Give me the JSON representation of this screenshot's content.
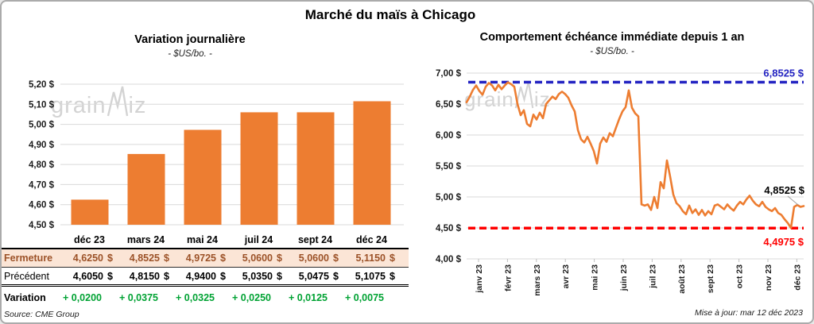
{
  "title": "Marché du maïs à Chicago",
  "watermark": {
    "part1": "grain",
    "part2": "iz"
  },
  "colors": {
    "accent_orange": "#ED7D31",
    "ref_blue": "#2424C2",
    "ref_red": "#FF0000",
    "gain_green": "#00A233",
    "close_brown": "#9C5228",
    "close_bg": "#FBE5D6",
    "grid": "#D9D9D9",
    "watermark": "#C9C9C9"
  },
  "chart_data": [
    {
      "type": "bar",
      "title": "Variation journalière",
      "subtitle": "- $US/bo. -",
      "categories": [
        "déc 23",
        "mars 24",
        "mai 24",
        "juil 24",
        "sept 24",
        "déc 24"
      ],
      "values": [
        4.625,
        4.8525,
        4.9725,
        5.06,
        5.06,
        5.115
      ],
      "ylim": [
        4.5,
        5.2
      ],
      "grid": true,
      "bar_color": "#ED7D31",
      "yticks": [
        {
          "v": 5.2,
          "label": "5,20 $"
        },
        {
          "v": 5.1,
          "label": "5,10 $"
        },
        {
          "v": 5.0,
          "label": "5,00 $"
        },
        {
          "v": 4.9,
          "label": "4,90 $"
        },
        {
          "v": 4.8,
          "label": "4,80 $"
        },
        {
          "v": 4.7,
          "label": "4,70 $"
        },
        {
          "v": 4.6,
          "label": "4,60 $"
        },
        {
          "v": 4.5,
          "label": "4,50 $"
        }
      ]
    },
    {
      "type": "line",
      "title": "Comportement échéance immédiate depuis 1 an",
      "subtitle": "- $US/bo. -",
      "x_labels": [
        "janv 23",
        "févr 23",
        "mars 23",
        "avr 23",
        "mai 23",
        "juin 23",
        "juil 23",
        "août 23",
        "sept 23",
        "oct 23",
        "nov 23",
        "déc 23"
      ],
      "ylim": [
        4.0,
        7.0
      ],
      "grid": true,
      "yticks": [
        {
          "v": 7.0,
          "label": "7,00 $"
        },
        {
          "v": 6.5,
          "label": "6,50 $"
        },
        {
          "v": 6.0,
          "label": "6,00 $"
        },
        {
          "v": 5.5,
          "label": "5,50 $"
        },
        {
          "v": 5.0,
          "label": "5,00 $"
        },
        {
          "v": 4.5,
          "label": "4,50 $"
        },
        {
          "v": 4.0,
          "label": "4,00 $"
        }
      ],
      "ref_lines": [
        {
          "value": 6.8525,
          "label": "6,8525 $",
          "color": "#2424C2",
          "style": "dashed",
          "label_position": "above"
        },
        {
          "value": 4.4975,
          "label": "4,4975 $",
          "color": "#FF0000",
          "style": "dashed",
          "label_position": "below"
        }
      ],
      "end_annotation": {
        "label": "4,8525 $",
        "value": 4.8525
      },
      "series": [
        {
          "name": "échéance immédiate",
          "color": "#ED7D31",
          "values": [
            6.53,
            6.62,
            6.73,
            6.8,
            6.71,
            6.65,
            6.78,
            6.84,
            6.8,
            6.72,
            6.81,
            6.74,
            6.8,
            6.85,
            6.82,
            6.78,
            6.5,
            6.32,
            6.4,
            6.18,
            6.14,
            6.33,
            6.25,
            6.36,
            6.27,
            6.5,
            6.56,
            6.62,
            6.58,
            6.66,
            6.7,
            6.66,
            6.6,
            6.48,
            6.38,
            6.08,
            5.93,
            5.88,
            5.97,
            5.86,
            5.74,
            5.54,
            5.86,
            5.96,
            5.89,
            6.03,
            5.98,
            6.12,
            6.26,
            6.38,
            6.45,
            6.72,
            6.44,
            6.35,
            6.3,
            4.88,
            4.86,
            4.88,
            4.79,
            5.0,
            4.82,
            5.24,
            5.14,
            5.59,
            5.33,
            5.04,
            4.9,
            4.85,
            4.77,
            4.72,
            4.86,
            4.74,
            4.8,
            4.71,
            4.79,
            4.7,
            4.77,
            4.72,
            4.86,
            4.88,
            4.84,
            4.8,
            4.88,
            4.82,
            4.78,
            4.86,
            4.92,
            4.88,
            4.96,
            5.02,
            4.94,
            4.88,
            4.85,
            4.92,
            4.84,
            4.8,
            4.77,
            4.82,
            4.74,
            4.71,
            4.64,
            4.58,
            4.5,
            4.84,
            4.87,
            4.84,
            4.8525
          ]
        }
      ]
    }
  ],
  "table": {
    "columns": [
      "",
      "déc 23",
      "mars 24",
      "mai 24",
      "juil 24",
      "sept 24",
      "déc 24"
    ],
    "rows": [
      {
        "label": "Fermeture",
        "label_color": "#9C5228",
        "label_bold": true,
        "value_color": "#9C5228",
        "bg": "#FBE5D6",
        "values": [
          "4,6250 $",
          "4,8525 $",
          "4,9725 $",
          "5,0600 $",
          "5,0600 $",
          "5,1150 $"
        ]
      },
      {
        "label": "Précédent",
        "label_color": "#000000",
        "label_bold": false,
        "value_color": "#000000",
        "bg": "",
        "values": [
          "4,6050 $",
          "4,8150 $",
          "4,9400 $",
          "5,0350 $",
          "5,0475 $",
          "5,1075 $"
        ]
      },
      {
        "label": "Variation",
        "label_color": "#000000",
        "label_bold": true,
        "value_color": "#00A233",
        "bg": "",
        "values": [
          "+ 0,0200",
          "+ 0,0375",
          "+ 0,0325",
          "+ 0,0250",
          "+ 0,0125",
          "+ 0,0075"
        ]
      }
    ],
    "source": "Source: CME Group"
  },
  "footer": {
    "updated": "Mise à jour: mar 12 déc 2023"
  }
}
